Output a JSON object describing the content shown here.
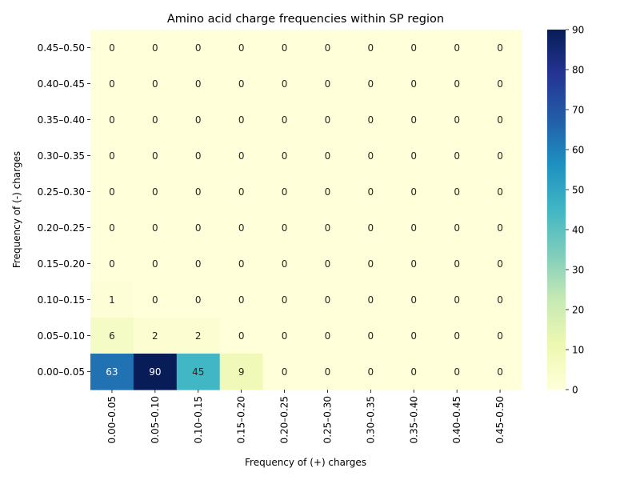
{
  "chart_data": {
    "type": "heatmap",
    "title": "Amino acid charge frequencies within SP region",
    "xlabel": "Frequency of (+) charges",
    "ylabel": "Frequency of (-) charges",
    "x_categories": [
      "0.00–0.05",
      "0.05–0.10",
      "0.10–0.15",
      "0.15–0.20",
      "0.20–0.25",
      "0.25–0.30",
      "0.30–0.35",
      "0.35–0.40",
      "0.40–0.45",
      "0.45–0.50"
    ],
    "y_categories": [
      "0.45–0.50",
      "0.40–0.45",
      "0.35–0.40",
      "0.30–0.35",
      "0.25–0.30",
      "0.20–0.25",
      "0.15–0.20",
      "0.10–0.15",
      "0.05–0.10",
      "0.00–0.05"
    ],
    "values": [
      [
        0,
        0,
        0,
        0,
        0,
        0,
        0,
        0,
        0,
        0
      ],
      [
        0,
        0,
        0,
        0,
        0,
        0,
        0,
        0,
        0,
        0
      ],
      [
        0,
        0,
        0,
        0,
        0,
        0,
        0,
        0,
        0,
        0
      ],
      [
        0,
        0,
        0,
        0,
        0,
        0,
        0,
        0,
        0,
        0
      ],
      [
        0,
        0,
        0,
        0,
        0,
        0,
        0,
        0,
        0,
        0
      ],
      [
        0,
        0,
        0,
        0,
        0,
        0,
        0,
        0,
        0,
        0
      ],
      [
        0,
        0,
        0,
        0,
        0,
        0,
        0,
        0,
        0,
        0
      ],
      [
        1,
        0,
        0,
        0,
        0,
        0,
        0,
        0,
        0,
        0
      ],
      [
        6,
        2,
        2,
        0,
        0,
        0,
        0,
        0,
        0,
        0
      ],
      [
        63,
        90,
        45,
        9,
        0,
        0,
        0,
        0,
        0,
        0
      ]
    ],
    "colormap": "YlGnBu",
    "colorbar": {
      "min": 0,
      "max": 90,
      "ticks": [
        0,
        10,
        20,
        30,
        40,
        50,
        60,
        70,
        80,
        90
      ]
    },
    "annotations": true,
    "grid": false
  }
}
